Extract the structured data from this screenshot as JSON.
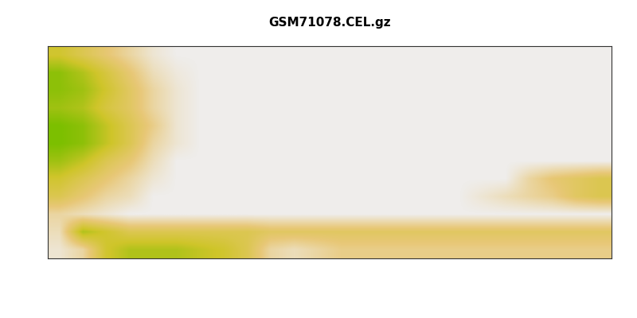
{
  "chart_data": {
    "type": "heatmap",
    "title": "GSM71078.CEL.gz",
    "tick_labels": false,
    "cells": [
      [
        0.6,
        0.5,
        0.4,
        0.3,
        0.2,
        0.15,
        0.15,
        0.15,
        0.15,
        0.15,
        0.15,
        0.15,
        0.15,
        0.15,
        0.15,
        0.15,
        0.15,
        0.15,
        0.15,
        0.15,
        0.15,
        0.15,
        0.15,
        0.15
      ],
      [
        0.8,
        0.7,
        0.55,
        0.4,
        0.25,
        0.18,
        0.15,
        0.15,
        0.15,
        0.15,
        0.15,
        0.15,
        0.15,
        0.15,
        0.15,
        0.15,
        0.15,
        0.15,
        0.15,
        0.15,
        0.15,
        0.15,
        0.15,
        0.15
      ],
      [
        0.8,
        0.75,
        0.6,
        0.45,
        0.3,
        0.2,
        0.15,
        0.15,
        0.15,
        0.15,
        0.15,
        0.15,
        0.15,
        0.15,
        0.15,
        0.15,
        0.15,
        0.15,
        0.15,
        0.15,
        0.15,
        0.15,
        0.15,
        0.15
      ],
      [
        0.75,
        0.7,
        0.55,
        0.45,
        0.3,
        0.2,
        0.15,
        0.15,
        0.15,
        0.15,
        0.15,
        0.15,
        0.15,
        0.15,
        0.15,
        0.15,
        0.15,
        0.15,
        0.15,
        0.15,
        0.15,
        0.15,
        0.15,
        0.15
      ],
      [
        0.85,
        0.8,
        0.65,
        0.5,
        0.35,
        0.2,
        0.15,
        0.15,
        0.15,
        0.15,
        0.15,
        0.15,
        0.15,
        0.15,
        0.15,
        0.15,
        0.15,
        0.15,
        0.15,
        0.15,
        0.15,
        0.15,
        0.15,
        0.15
      ],
      [
        0.85,
        0.8,
        0.65,
        0.5,
        0.3,
        0.2,
        0.15,
        0.15,
        0.15,
        0.15,
        0.15,
        0.15,
        0.15,
        0.15,
        0.15,
        0.15,
        0.15,
        0.15,
        0.15,
        0.15,
        0.15,
        0.15,
        0.15,
        0.15
      ],
      [
        0.75,
        0.65,
        0.5,
        0.4,
        0.25,
        0.15,
        0.15,
        0.15,
        0.15,
        0.15,
        0.15,
        0.15,
        0.15,
        0.15,
        0.15,
        0.15,
        0.15,
        0.15,
        0.15,
        0.15,
        0.15,
        0.15,
        0.15,
        0.15
      ],
      [
        0.6,
        0.5,
        0.4,
        0.3,
        0.2,
        0.15,
        0.15,
        0.15,
        0.15,
        0.15,
        0.15,
        0.15,
        0.15,
        0.15,
        0.15,
        0.15,
        0.15,
        0.15,
        0.15,
        0.15,
        0.3,
        0.4,
        0.45,
        0.5
      ],
      [
        0.5,
        0.4,
        0.3,
        0.25,
        0.15,
        0.15,
        0.15,
        0.15,
        0.15,
        0.15,
        0.15,
        0.15,
        0.15,
        0.15,
        0.15,
        0.15,
        0.15,
        0.15,
        0.2,
        0.25,
        0.3,
        0.35,
        0.45,
        0.5
      ],
      [
        0.3,
        0.25,
        0.2,
        0.15,
        0.15,
        0.15,
        0.15,
        0.15,
        0.15,
        0.15,
        0.15,
        0.15,
        0.15,
        0.15,
        0.15,
        0.15,
        0.15,
        0.15,
        0.15,
        0.15,
        0.15,
        0.15,
        0.15,
        0.15
      ],
      [
        0.25,
        0.7,
        0.6,
        0.5,
        0.5,
        0.5,
        0.5,
        0.5,
        0.5,
        0.45,
        0.45,
        0.45,
        0.45,
        0.45,
        0.45,
        0.45,
        0.45,
        0.45,
        0.45,
        0.45,
        0.45,
        0.45,
        0.45,
        0.45
      ],
      [
        0.2,
        0.3,
        0.6,
        0.7,
        0.7,
        0.7,
        0.65,
        0.6,
        0.5,
        0.3,
        0.25,
        0.3,
        0.35,
        0.35,
        0.35,
        0.35,
        0.35,
        0.35,
        0.35,
        0.35,
        0.35,
        0.35,
        0.35,
        0.35
      ]
    ]
  }
}
